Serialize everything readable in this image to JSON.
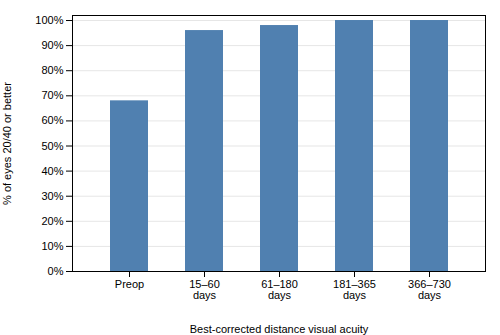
{
  "chart_data": {
    "type": "bar",
    "categories": [
      "Preop",
      "15–60\ndays",
      "61–180\ndays",
      "181–365\ndays",
      "366–730\ndays"
    ],
    "values": [
      68,
      96,
      98,
      100,
      100
    ],
    "color": "#5080B0",
    "ylabel": "% of eyes 20/40 or better",
    "xlabel": "Best-corrected distance visual acuity",
    "ylim": [
      0,
      102
    ],
    "yticks": [
      {
        "value": 0,
        "label": "0%"
      },
      {
        "value": 10,
        "label": "10%"
      },
      {
        "value": 20,
        "label": "20%"
      },
      {
        "value": 30,
        "label": "30%"
      },
      {
        "value": 40,
        "label": "40%"
      },
      {
        "value": 50,
        "label": "50%"
      },
      {
        "value": 60,
        "label": "60%"
      },
      {
        "value": 70,
        "label": "70%"
      },
      {
        "value": 80,
        "label": "80%"
      },
      {
        "value": 90,
        "label": "90%"
      },
      {
        "value": 100,
        "label": "100%"
      }
    ],
    "grid": true
  }
}
